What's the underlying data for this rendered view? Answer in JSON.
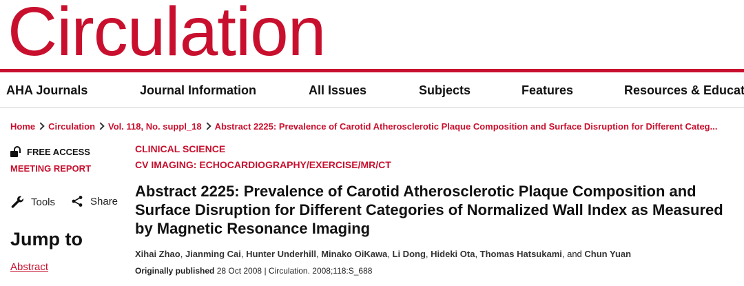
{
  "masthead": {
    "logo_text": "Circulation",
    "brand_color": "#c8102e"
  },
  "nav": {
    "items": [
      "AHA Journals",
      "Journal Information",
      "All Issues",
      "Subjects",
      "Features",
      "Resources & Educat"
    ]
  },
  "breadcrumb": {
    "items": [
      "Home",
      "Circulation",
      "Vol. 118, No. suppl_18",
      "Abstract 2225: Prevalence of Carotid Atherosclerotic Plaque Composition and Surface Disruption for Different Categ..."
    ]
  },
  "sidebar": {
    "access_label": "FREE ACCESS",
    "article_type": "MEETING REPORT",
    "tools_label": "Tools",
    "share_label": "Share",
    "jump_heading": "Jump to",
    "jump_first_link": "Abstract"
  },
  "article": {
    "section": "CLINICAL SCIENCE",
    "subsection": "CV IMAGING: ECHOCARDIOGRAPHY/EXERCISE/MR/CT",
    "title": "Abstract 2225: Prevalence of Carotid Atherosclerotic Plaque Composition and Surface Disruption for Different Categories of Normalized Wall Index as Measured by Magnetic Resonance Imaging",
    "authors": [
      "Xihai Zhao",
      "Jianming Cai",
      "Hunter Underhill",
      "Minako OiKawa",
      "Li Dong",
      "Hideki Ota",
      "Thomas Hatsukami",
      "Chun Yuan"
    ],
    "authors_sep": ", ",
    "authors_and": ", and ",
    "published_label": "Originally published",
    "published_date": "28 Oct 2008",
    "citation": "Circulation. 2008;118:S_688"
  },
  "icons": [
    "lock-open-icon",
    "wrench-icon",
    "share-icon",
    "chevron-right-icon"
  ]
}
